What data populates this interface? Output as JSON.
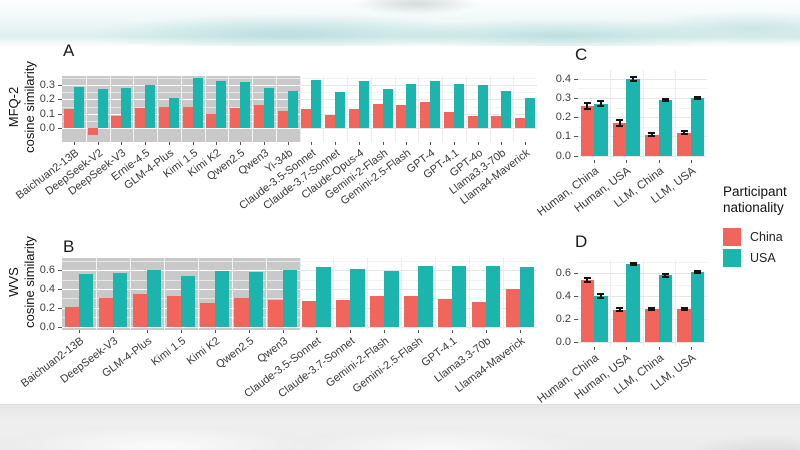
{
  "legend": {
    "title": [
      "Participant",
      "nationality"
    ],
    "items": [
      {
        "label": "China",
        "color": "#f2655c"
      },
      {
        "label": "USA",
        "color": "#1bb5ad"
      }
    ]
  },
  "styles": {
    "shade_color": "#c9c9c9",
    "china_color": "#f2655c",
    "usa_color": "#1bb5ad",
    "error_color": "#141414"
  },
  "chart_data": [
    {
      "id": "A",
      "type": "bar",
      "panel_label": "A",
      "ylabel_lines": [
        "MFQ-2",
        "cosine similarity"
      ],
      "yticks": [
        0.0,
        0.1,
        0.2,
        0.3
      ],
      "ylim": [
        -0.1,
        0.365
      ],
      "grid": true,
      "shaded_categories": 10,
      "categories": [
        "Baichuan2-13B",
        "DeepSeek-V2",
        "DeepSeek-V3",
        "Ernie-4.5",
        "GLM-4-Plus",
        "Kimi 1.5",
        "Kimi K2",
        "Qwen2.5",
        "Qwen3",
        "Yi-34b",
        "Claude-3.5-Sonnet",
        "Claude-3.7-Sonnet",
        "Claude-Opus-4",
        "Gemini-2-Flash",
        "Gemini-2.5-Flash",
        "GPT-4",
        "GPT-4.1",
        "GPT-4o",
        "Llama3.3-70b",
        "Llama4-Maverick"
      ],
      "series": [
        {
          "name": "China",
          "values": [
            0.13,
            -0.05,
            0.08,
            0.14,
            0.15,
            0.15,
            0.1,
            0.14,
            0.16,
            0.12,
            0.13,
            0.09,
            0.13,
            0.17,
            0.16,
            0.18,
            0.11,
            0.08,
            0.08,
            0.07
          ]
        },
        {
          "name": "USA",
          "values": [
            0.29,
            0.27,
            0.28,
            0.3,
            0.21,
            0.35,
            0.33,
            0.32,
            0.28,
            0.26,
            0.34,
            0.25,
            0.33,
            0.27,
            0.31,
            0.33,
            0.31,
            0.3,
            0.26,
            0.21
          ]
        }
      ]
    },
    {
      "id": "B",
      "type": "bar",
      "panel_label": "B",
      "ylabel_lines": [
        "WVS",
        "cosine similarity"
      ],
      "yticks": [
        0.0,
        0.2,
        0.4,
        0.6
      ],
      "ylim": [
        -0.035,
        0.73
      ],
      "grid": true,
      "shaded_categories": 7,
      "categories": [
        "Baichuan2-13B",
        "DeepSeek-V3",
        "GLM-4-Plus",
        "Kimi 1.5",
        "Kimi K2",
        "Qwen2.5",
        "Qwen3",
        "Claude-3.5-Sonnet",
        "Claude-3.7-Sonnet",
        "Gemini-2-Flash",
        "Gemini-2.5-Flash",
        "GPT-4.1",
        "Llama3.3-70b",
        "Llama4-Maverick"
      ],
      "series": [
        {
          "name": "China",
          "values": [
            0.21,
            0.3,
            0.35,
            0.33,
            0.25,
            0.3,
            0.28,
            0.27,
            0.28,
            0.33,
            0.33,
            0.29,
            0.26,
            0.4
          ]
        },
        {
          "name": "USA",
          "values": [
            0.56,
            0.57,
            0.6,
            0.54,
            0.59,
            0.58,
            0.6,
            0.63,
            0.61,
            0.59,
            0.64,
            0.65,
            0.64,
            0.63
          ]
        }
      ]
    },
    {
      "id": "C",
      "type": "bar",
      "panel_label": "C",
      "ylabel_lines": [],
      "yticks": [
        0.0,
        0.1,
        0.2,
        0.3,
        0.4
      ],
      "ylim": [
        -0.022,
        0.445
      ],
      "grid": true,
      "shaded_categories": 0,
      "categories": [
        "Human, China",
        "Human, USA",
        "LLM, China",
        "LLM, USA"
      ],
      "series": [
        {
          "name": "China",
          "values": [
            0.26,
            0.17,
            0.11,
            0.12
          ],
          "errors": [
            0.015,
            0.015,
            0.006,
            0.008
          ]
        },
        {
          "name": "USA",
          "values": [
            0.27,
            0.4,
            0.29,
            0.3
          ],
          "errors": [
            0.012,
            0.01,
            0.006,
            0.006
          ]
        }
      ]
    },
    {
      "id": "D",
      "type": "bar",
      "panel_label": "D",
      "ylabel_lines": [],
      "yticks": [
        0.0,
        0.2,
        0.4,
        0.6
      ],
      "ylim": [
        -0.045,
        0.715
      ],
      "grid": true,
      "shaded_categories": 0,
      "categories": [
        "Human, China",
        "Human, USA",
        "LLM, China",
        "LLM, USA"
      ],
      "series": [
        {
          "name": "China",
          "values": [
            0.54,
            0.28,
            0.29,
            0.29
          ],
          "errors": [
            0.015,
            0.012,
            0.008,
            0.008
          ]
        },
        {
          "name": "USA",
          "values": [
            0.4,
            0.68,
            0.58,
            0.61
          ],
          "errors": [
            0.015,
            0.012,
            0.012,
            0.01
          ]
        }
      ]
    }
  ]
}
